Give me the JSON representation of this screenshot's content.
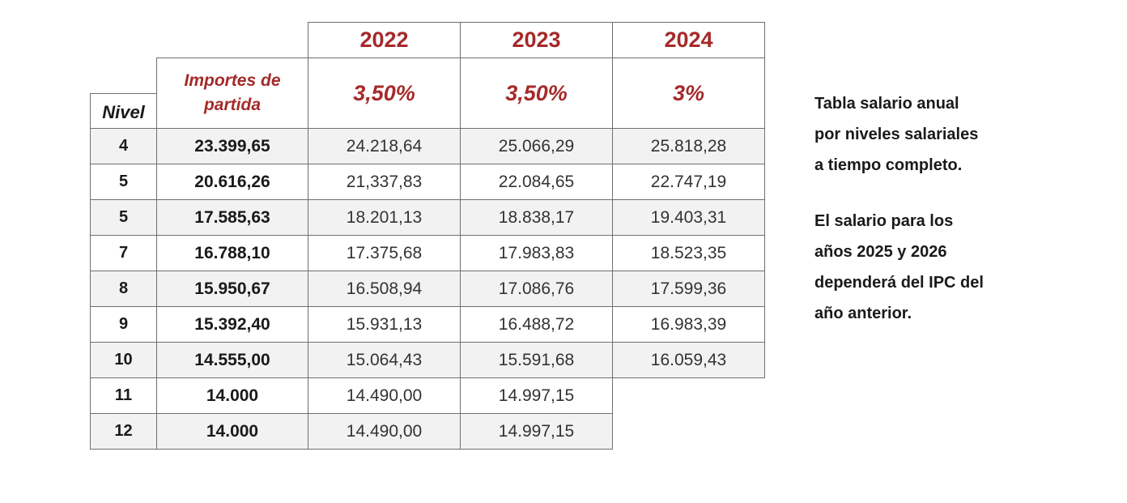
{
  "table": {
    "years": [
      "2022",
      "2023",
      "2024"
    ],
    "nivel_header": "Nivel",
    "importes_header_line1": "Importes de",
    "importes_header_line2": "partida",
    "percentages": [
      "3,50%",
      "3,50%",
      "3%"
    ],
    "rows": [
      {
        "nivel": "4",
        "base": "23.399,65",
        "y2022": "24.218,64",
        "y2023": "25.066,29",
        "y2024": "25.818,28"
      },
      {
        "nivel": "5",
        "base": "20.616,26",
        "y2022": "21,337,83",
        "y2023": "22.084,65",
        "y2024": "22.747,19"
      },
      {
        "nivel": "5",
        "base": "17.585,63",
        "y2022": "18.201,13",
        "y2023": "18.838,17",
        "y2024": "19.403,31"
      },
      {
        "nivel": "7",
        "base": "16.788,10",
        "y2022": "17.375,68",
        "y2023": "17.983,83",
        "y2024": "18.523,35"
      },
      {
        "nivel": "8",
        "base": "15.950,67",
        "y2022": "16.508,94",
        "y2023": "17.086,76",
        "y2024": "17.599,36"
      },
      {
        "nivel": "9",
        "base": "15.392,40",
        "y2022": "15.931,13",
        "y2023": "16.488,72",
        "y2024": "16.983,39"
      },
      {
        "nivel": "10",
        "base": "14.555,00",
        "y2022": "15.064,43",
        "y2023": "15.591,68",
        "y2024": "16.059,43"
      },
      {
        "nivel": "11",
        "base": "14.000",
        "y2022": "14.490,00",
        "y2023": "14.997,15"
      },
      {
        "nivel": "12",
        "base": "14.000",
        "y2022": "14.490,00",
        "y2023": "14.997,15"
      }
    ]
  },
  "side_note": {
    "paragraph1": [
      "Tabla salario anual",
      "por niveles salariales",
      "a tiempo completo."
    ],
    "paragraph2": [
      "El salario para los",
      "años 2025 y 2026",
      "dependerá del IPC del",
      "año anterior."
    ]
  },
  "colors": {
    "accent": "#a52a2a",
    "row_shade": "#f2f2f2",
    "border": "#6f6f6f"
  }
}
